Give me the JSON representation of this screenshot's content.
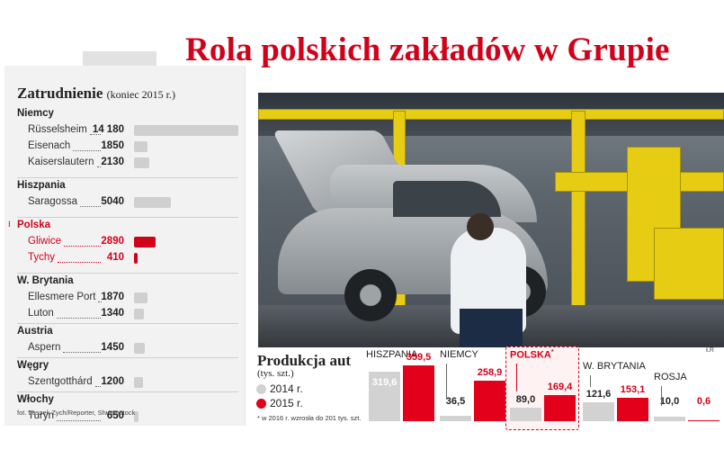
{
  "title": "Rola polskich zakładów w Grupie",
  "employment": {
    "title": "Zatrudnienie",
    "subtitle": "(koniec 2015 r.)",
    "max_value": 14180,
    "countries": [
      {
        "name": "Niemcy",
        "plants": [
          {
            "city": "Rüsselsheim",
            "value": 14180,
            "value_label": "14 180"
          },
          {
            "city": "Eisenach",
            "value": 1850,
            "value_label": "1850"
          },
          {
            "city": "Kaiserslautern",
            "value": 2130,
            "value_label": "2130"
          }
        ]
      },
      {
        "name": "Hiszpania",
        "plants": [
          {
            "city": "Saragossa",
            "value": 5040,
            "value_label": "5040"
          }
        ]
      },
      {
        "name": "Polska",
        "highlight": true,
        "plants": [
          {
            "city": "Gliwice",
            "value": 2890,
            "value_label": "2890"
          },
          {
            "city": "Tychy",
            "value": 410,
            "value_label": "410"
          }
        ]
      },
      {
        "name": "W. Brytania",
        "plants": [
          {
            "city": "Ellesmere Port",
            "value": 1870,
            "value_label": "1870"
          },
          {
            "city": "Luton",
            "value": 1340,
            "value_label": "1340"
          }
        ]
      },
      {
        "name": "Austria",
        "plants": [
          {
            "city": "Aspern",
            "value": 1450,
            "value_label": "1450"
          }
        ]
      },
      {
        "name": "Węgry",
        "plants": [
          {
            "city": "Szentgotthárd",
            "value": 1200,
            "value_label": "1200"
          }
        ]
      },
      {
        "name": "Włochy",
        "plants": [
          {
            "city": "Turyn",
            "value": 650,
            "value_label": "650"
          }
        ]
      }
    ]
  },
  "photo_credit": "fot. Leszek Zych/Reporter, Shutterstock",
  "corner_mark": "ŁR",
  "colors": {
    "accent": "#d0021b",
    "bar_2014": "#d2d2d2",
    "bar_2015": "#e3001b"
  },
  "chart_data": {
    "type": "bar",
    "title": "Produkcja aut",
    "unit": "(tys. szt.)",
    "categories": [
      "HISZPANIA",
      "NIEMCY",
      "POLSKA",
      "W. BRYTANIA",
      "ROSJA"
    ],
    "series": [
      {
        "name": "2014 r.",
        "values": [
          319.6,
          36.5,
          89.0,
          121.6,
          10.0
        ]
      },
      {
        "name": "2015 r.",
        "values": [
          359.5,
          258.9,
          169.4,
          153.1,
          0.6
        ]
      }
    ],
    "value_labels": [
      [
        "319,6",
        "36,5",
        "89,0",
        "121,6",
        "10,0"
      ],
      [
        "359,5",
        "258,9",
        "169,4",
        "153,1",
        "0,6"
      ]
    ],
    "highlight_category": "POLSKA",
    "category_footnote_mark": "*",
    "footnote": "* w 2016 r. wzrosła do 201 tys. szt.",
    "legend_placement": "left"
  }
}
